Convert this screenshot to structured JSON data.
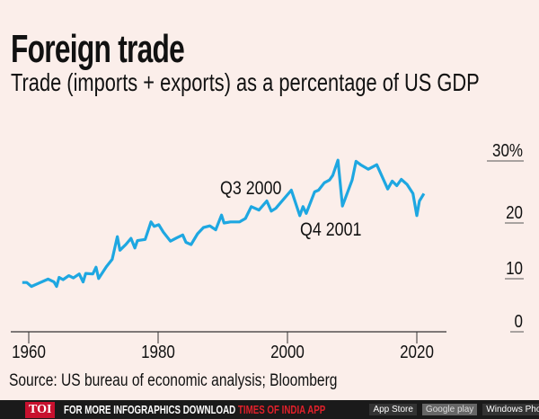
{
  "title": "Foreign trade",
  "subtitle": "Trade (imports + exports) as a percentage of US GDP",
  "source": "Source: US bureau of economic analysis; Bloomberg",
  "footer": {
    "logo": "TOI",
    "text": "FOR MORE  INFOGRAPHICS DOWNLOAD",
    "app": "TIMES OF INDIA APP",
    "badges": [
      "App Store",
      "Google play",
      "Windows Phone"
    ]
  },
  "colors": {
    "line": "#1ea7e1",
    "background": "#fbeeea",
    "footer": "#1a1a1a",
    "accent": "#e0202a"
  },
  "chart_data": {
    "type": "line",
    "title": "Foreign trade",
    "subtitle": "Trade (imports + exports) as a percentage of US GDP",
    "xlabel": "",
    "ylabel": "",
    "xlim": [
      1958,
      2024
    ],
    "ylim": [
      0,
      30
    ],
    "x_ticks": [
      "1960",
      "1980",
      "2000",
      "2020"
    ],
    "x_tick_values": [
      1960,
      1980,
      2000,
      2020
    ],
    "y_ticks": [
      "30%",
      "20",
      "10",
      "0"
    ],
    "y_tick_values": [
      30,
      20,
      10,
      0
    ],
    "y_axis_position": "right",
    "grid": false,
    "annotations": [
      {
        "text": "Q3 2000",
        "x": 2000.6,
        "y": 25.0
      },
      {
        "text": "Q4 2001",
        "x": 2001.9,
        "y": 20.5
      }
    ],
    "x": [
      1959.0,
      1959.7,
      1960.4,
      1961.6,
      1963.0,
      1963.9,
      1964.3,
      1964.7,
      1965.3,
      1966.2,
      1966.9,
      1967.8,
      1968.4,
      1968.8,
      1969.9,
      1970.4,
      1970.8,
      1972.0,
      1972.9,
      1973.7,
      1974.1,
      1975.0,
      1975.8,
      1976.4,
      1976.8,
      1978.0,
      1978.9,
      1979.4,
      1980.1,
      1980.8,
      1981.9,
      1982.9,
      1983.8,
      1984.3,
      1985.1,
      1986.1,
      1987.0,
      1988.0,
      1988.9,
      1989.8,
      1990.2,
      1991.2,
      1992.6,
      1993.5,
      1994.4,
      1995.6,
      1996.8,
      1997.5,
      1998.2,
      2000.6,
      2001.9,
      2002.4,
      2002.9,
      2004.2,
      2004.8,
      2005.7,
      2006.5,
      2007.0,
      2007.8,
      2008.5,
      2010.0,
      2010.6,
      2011.3,
      2012.5,
      2013.8,
      2015.5,
      2016.2,
      2016.9,
      2017.6,
      2018.5,
      2019.4,
      2020.0,
      2020.4,
      2021.1
    ],
    "values": [
      8.7,
      8.7,
      8.0,
      8.6,
      9.3,
      8.8,
      8.0,
      9.6,
      9.2,
      9.9,
      9.5,
      10.2,
      8.8,
      10.3,
      10.2,
      11.4,
      9.4,
      11.5,
      12.8,
      16.8,
      14.4,
      15.4,
      16.5,
      14.8,
      16.1,
      16.3,
      19.4,
      18.6,
      18.9,
      17.6,
      16.0,
      16.6,
      17.1,
      15.8,
      15.4,
      17.3,
      18.4,
      18.7,
      18.0,
      20.6,
      19.2,
      19.4,
      19.4,
      20.0,
      22.1,
      21.5,
      23.1,
      21.3,
      21.8,
      25.0,
      20.5,
      22.1,
      20.9,
      24.7,
      25.0,
      26.3,
      26.8,
      27.6,
      30.3,
      22.2,
      26.8,
      30.1,
      29.5,
      28.7,
      29.5,
      25.2,
      26.6,
      25.8,
      26.9,
      26.0,
      24.4,
      20.5,
      23.1,
      24.4
    ]
  }
}
